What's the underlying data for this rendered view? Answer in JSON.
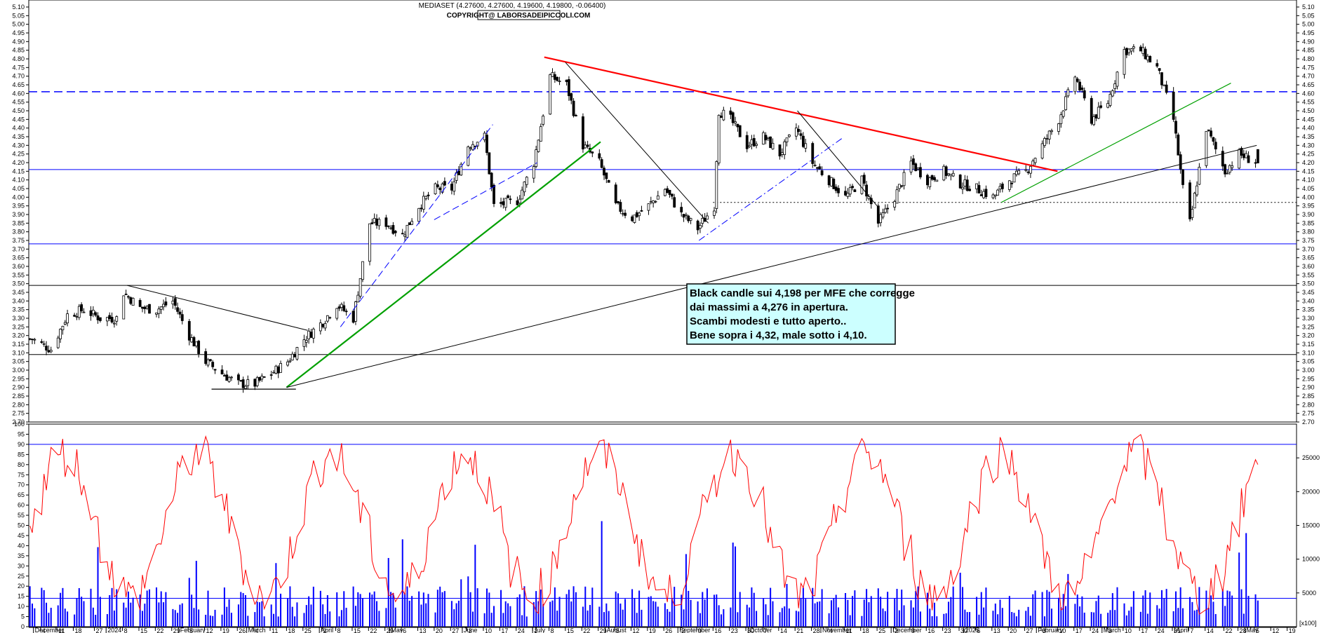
{
  "header": {
    "quote": "MEDIASET (4.27600, 4.27600, 4.19600, 4.19800, -0.06400)",
    "copyright": "COPYRIGHT@ LABORSADEIPICCOLI.COM"
  },
  "annotation": {
    "lines": [
      "Black candle sui 4,198 per MFE che corregge",
      "dai massimi a 4,276 in apertura.",
      "Scambi modesti e tutto aperto..",
      "Bene sopra i 4,32, male sotto i 4,10."
    ]
  },
  "colors": {
    "bg": "#ffffff",
    "candle_up": "#ffffff",
    "candle_down": "#000000",
    "osc": "#ff0000",
    "volume": "#0000ff",
    "guide_h": "#0000ff",
    "red_trend": "#ff0000",
    "green_trend": "#00a000",
    "note_bg": "#ccffff"
  },
  "chart_data": [
    {
      "type": "candlestick",
      "name": "MEDIASET",
      "ylim": [
        2.7,
        5.1
      ],
      "yticks": [
        "5.10",
        "5.05",
        "5.00",
        "4.95",
        "4.90",
        "4.85",
        "4.80",
        "4.75",
        "4.70",
        "4.65",
        "4.60",
        "4.55",
        "4.50",
        "4.45",
        "4.40",
        "4.35",
        "4.30",
        "4.25",
        "4.20",
        "4.15",
        "4.10",
        "4.05",
        "4.00",
        "3.95",
        "3.90",
        "3.85",
        "3.80",
        "3.75",
        "3.70",
        "3.65",
        "3.60",
        "3.55",
        "3.50",
        "3.45",
        "3.40",
        "3.35",
        "3.30",
        "3.25",
        "3.20",
        "3.15",
        "3.10",
        "3.05",
        "3.00",
        "2.95",
        "2.90",
        "2.85",
        "2.80",
        "2.75",
        "2.70"
      ],
      "last": {
        "open": 4.276,
        "high": 4.276,
        "low": 4.196,
        "close": 4.198,
        "change": -0.064
      },
      "close_path": [
        [
          "2023-11-30",
          3.18
        ],
        [
          "2023-12-08",
          3.12
        ],
        [
          "2023-12-15",
          3.32
        ],
        [
          "2023-12-22",
          3.35
        ],
        [
          "2023-12-29",
          3.3
        ],
        [
          "2024-01-05",
          3.3
        ],
        [
          "2024-01-08",
          3.45
        ],
        [
          "2024-01-15",
          3.36
        ],
        [
          "2024-01-22",
          3.35
        ],
        [
          "2024-01-29",
          3.4
        ],
        [
          "2024-02-05",
          3.2
        ],
        [
          "2024-02-12",
          3.05
        ],
        [
          "2024-02-19",
          2.98
        ],
        [
          "2024-02-26",
          2.92
        ],
        [
          "2024-03-04",
          2.92
        ],
        [
          "2024-03-11",
          2.98
        ],
        [
          "2024-03-18",
          3.05
        ],
        [
          "2024-03-25",
          3.18
        ],
        [
          "2024-04-02",
          3.28
        ],
        [
          "2024-04-08",
          3.38
        ],
        [
          "2024-04-15",
          3.3
        ],
        [
          "2024-04-22",
          3.85
        ],
        [
          "2024-04-29",
          3.85
        ],
        [
          "2024-05-06",
          3.78
        ],
        [
          "2024-05-13",
          3.95
        ],
        [
          "2024-05-20",
          4.05
        ],
        [
          "2024-05-27",
          4.05
        ],
        [
          "2024-06-03",
          4.3
        ],
        [
          "2024-06-10",
          4.35
        ],
        [
          "2024-06-14",
          3.95
        ],
        [
          "2024-06-24",
          3.98
        ],
        [
          "2024-07-01",
          4.2
        ],
        [
          "2024-07-08",
          4.7
        ],
        [
          "2024-07-15",
          4.65
        ],
        [
          "2024-07-22",
          4.3
        ],
        [
          "2024-07-29",
          4.2
        ],
        [
          "2024-08-05",
          3.95
        ],
        [
          "2024-08-12",
          3.88
        ],
        [
          "2024-08-19",
          3.95
        ],
        [
          "2024-08-26",
          4.05
        ],
        [
          "2024-09-02",
          3.9
        ],
        [
          "2024-09-09",
          3.82
        ],
        [
          "2024-09-16",
          3.95
        ],
        [
          "2024-09-18",
          4.5
        ],
        [
          "2024-09-23",
          4.45
        ],
        [
          "2024-09-30",
          4.3
        ],
        [
          "2024-10-07",
          4.35
        ],
        [
          "2024-10-14",
          4.25
        ],
        [
          "2024-10-21",
          4.4
        ],
        [
          "2024-10-28",
          4.2
        ],
        [
          "2024-11-04",
          4.1
        ],
        [
          "2024-11-11",
          4.0
        ],
        [
          "2024-11-18",
          4.1
        ],
        [
          "2024-11-25",
          3.85
        ],
        [
          "2024-12-02",
          4.0
        ],
        [
          "2024-12-09",
          4.2
        ],
        [
          "2024-12-16",
          4.1
        ],
        [
          "2024-12-23",
          4.15
        ],
        [
          "2024-12-30",
          4.08
        ],
        [
          "2025-01-06",
          4.05
        ],
        [
          "2025-01-13",
          4.0
        ],
        [
          "2025-01-20",
          4.1
        ],
        [
          "2025-01-27",
          4.15
        ],
        [
          "2025-02-03",
          4.3
        ],
        [
          "2025-02-10",
          4.45
        ],
        [
          "2025-02-17",
          4.7
        ],
        [
          "2025-02-24",
          4.45
        ],
        [
          "2025-03-03",
          4.55
        ],
        [
          "2025-03-10",
          4.85
        ],
        [
          "2025-03-17",
          4.85
        ],
        [
          "2025-03-24",
          4.75
        ],
        [
          "2025-03-31",
          4.45
        ],
        [
          "2025-04-04",
          4.05
        ],
        [
          "2025-04-07",
          3.85
        ],
        [
          "2025-04-14",
          4.4
        ],
        [
          "2025-04-22",
          4.15
        ],
        [
          "2025-04-28",
          4.25
        ],
        [
          "2025-05-06",
          4.198
        ]
      ]
    },
    {
      "type": "line",
      "name": "oscillator",
      "ylim": [
        0,
        100
      ],
      "yticks": [
        0,
        5,
        10,
        15,
        20,
        25,
        30,
        35,
        40,
        45,
        50,
        55,
        60,
        65,
        70,
        75,
        80,
        85,
        90,
        95,
        100
      ],
      "levels": [
        14,
        90
      ]
    },
    {
      "type": "bar",
      "name": "volume",
      "ylim": [
        0,
        30000
      ],
      "yticks": [
        5000,
        10000,
        15000,
        20000,
        25000
      ]
    }
  ],
  "x_axis": {
    "start": "2023-11-29",
    "end": "2025-05-23",
    "day_ticks": [
      [
        "2023-12-04",
        "4"
      ],
      [
        "2023-12-11",
        "11"
      ],
      [
        "2023-12-18",
        "18"
      ],
      [
        "2023-12-27",
        "27"
      ],
      [
        "2024-01-08",
        "8"
      ],
      [
        "2024-01-15",
        "15"
      ],
      [
        "2024-01-22",
        "22"
      ],
      [
        "2024-01-29",
        "29"
      ],
      [
        "2024-02-05",
        "5"
      ],
      [
        "2024-02-12",
        "12"
      ],
      [
        "2024-02-19",
        "19"
      ],
      [
        "2024-02-26",
        "26"
      ],
      [
        "2024-03-04",
        "4"
      ],
      [
        "2024-03-11",
        "11"
      ],
      [
        "2024-03-18",
        "18"
      ],
      [
        "2024-03-25",
        "25"
      ],
      [
        "2024-04-02",
        "2"
      ],
      [
        "2024-04-08",
        "8"
      ],
      [
        "2024-04-15",
        "15"
      ],
      [
        "2024-04-22",
        "22"
      ],
      [
        "2024-04-29",
        "29"
      ],
      [
        "2024-05-06",
        "6"
      ],
      [
        "2024-05-13",
        "13"
      ],
      [
        "2024-05-20",
        "20"
      ],
      [
        "2024-05-27",
        "27"
      ],
      [
        "2024-06-03",
        "3"
      ],
      [
        "2024-06-10",
        "10"
      ],
      [
        "2024-06-17",
        "17"
      ],
      [
        "2024-06-24",
        "24"
      ],
      [
        "2024-07-01",
        "1"
      ],
      [
        "2024-07-08",
        "8"
      ],
      [
        "2024-07-15",
        "15"
      ],
      [
        "2024-07-22",
        "22"
      ],
      [
        "2024-07-29",
        "29"
      ],
      [
        "2024-08-05",
        "5"
      ],
      [
        "2024-08-12",
        "12"
      ],
      [
        "2024-08-19",
        "19"
      ],
      [
        "2024-08-26",
        "26"
      ],
      [
        "2024-09-02",
        "2"
      ],
      [
        "2024-09-09",
        "9"
      ],
      [
        "2024-09-16",
        "16"
      ],
      [
        "2024-09-23",
        "23"
      ],
      [
        "2024-09-30",
        "30"
      ],
      [
        "2024-10-07",
        "7"
      ],
      [
        "2024-10-14",
        "14"
      ],
      [
        "2024-10-21",
        "21"
      ],
      [
        "2024-10-28",
        "28"
      ],
      [
        "2024-11-04",
        "4"
      ],
      [
        "2024-11-11",
        "11"
      ],
      [
        "2024-11-18",
        "18"
      ],
      [
        "2024-11-25",
        "25"
      ],
      [
        "2024-12-02",
        "2"
      ],
      [
        "2024-12-09",
        "9"
      ],
      [
        "2024-12-16",
        "16"
      ],
      [
        "2024-12-23",
        "23"
      ],
      [
        "2024-12-30",
        "30"
      ],
      [
        "2025-01-06",
        "6"
      ],
      [
        "2025-01-13",
        "13"
      ],
      [
        "2025-01-20",
        "20"
      ],
      [
        "2025-01-27",
        "27"
      ],
      [
        "2025-02-03",
        "3"
      ],
      [
        "2025-02-10",
        "10"
      ],
      [
        "2025-02-17",
        "17"
      ],
      [
        "2025-02-24",
        "24"
      ],
      [
        "2025-03-03",
        "3"
      ],
      [
        "2025-03-10",
        "10"
      ],
      [
        "2025-03-17",
        "17"
      ],
      [
        "2025-03-24",
        "24"
      ],
      [
        "2025-03-31",
        "31"
      ],
      [
        "2025-04-07",
        "7"
      ],
      [
        "2025-04-14",
        "14"
      ],
      [
        "2025-04-22",
        "22"
      ],
      [
        "2025-04-28",
        "28"
      ],
      [
        "2025-05-05",
        "5"
      ],
      [
        "2025-05-12",
        "12"
      ],
      [
        "2025-05-19",
        "19"
      ]
    ],
    "month_labels": [
      [
        "2023-12-01",
        "December"
      ],
      [
        "2024-01-01",
        "2024"
      ],
      [
        "2024-02-01",
        "February"
      ],
      [
        "2024-03-01",
        "March"
      ],
      [
        "2024-04-01",
        "April"
      ],
      [
        "2024-05-01",
        "May"
      ],
      [
        "2024-06-01",
        "June"
      ],
      [
        "2024-07-01",
        "July"
      ],
      [
        "2024-08-01",
        "August"
      ],
      [
        "2024-09-01",
        "September"
      ],
      [
        "2024-10-01",
        "October"
      ],
      [
        "2024-11-01",
        "November"
      ],
      [
        "2024-12-01",
        "December"
      ],
      [
        "2025-01-01",
        "2025"
      ],
      [
        "2025-02-01",
        "February"
      ],
      [
        "2025-03-01",
        "March"
      ],
      [
        "2025-04-01",
        "April"
      ],
      [
        "2025-05-01",
        "May"
      ]
    ],
    "scale_label": "[x100]"
  },
  "overlays": {
    "support_lines": [
      4.16,
      3.73,
      3.49,
      3.09
    ],
    "dashed_resistance": 4.61,
    "dotted_level": 3.97,
    "red_trendline": [
      [
        "2024-07-06",
        4.81
      ],
      [
        "2025-02-10",
        4.15
      ]
    ],
    "green_trendlines": [
      [
        [
          "2024-03-18",
          2.9
        ],
        [
          "2024-07-30",
          4.32
        ]
      ],
      [
        [
          "2025-01-17",
          3.97
        ],
        [
          "2025-04-25",
          4.66
        ]
      ]
    ],
    "black_trendlines": [
      [
        [
          "2024-03-18",
          2.9
        ],
        [
          "2025-05-06",
          4.3
        ]
      ],
      [
        [
          "2024-01-10",
          3.49
        ],
        [
          "2024-03-27",
          3.23
        ]
      ],
      [
        [
          "2024-07-15",
          4.78
        ],
        [
          "2024-09-14",
          3.85
        ]
      ],
      [
        [
          "2024-10-22",
          4.5
        ],
        [
          "2024-11-25",
          3.95
        ]
      ]
    ],
    "blue_dashed_channel": [
      [
        [
          "2024-04-10",
          3.25
        ],
        [
          "2024-06-14",
          4.42
        ]
      ],
      [
        [
          "2024-05-20",
          3.87
        ],
        [
          "2024-07-03",
          4.2
        ]
      ],
      [
        [
          "2024-09-10",
          3.75
        ],
        [
          "2024-11-10",
          4.34
        ]
      ]
    ],
    "bottom_base": [
      [
        "2024-02-15",
        2.89
      ],
      [
        "2024-03-22",
        2.89
      ]
    ]
  }
}
